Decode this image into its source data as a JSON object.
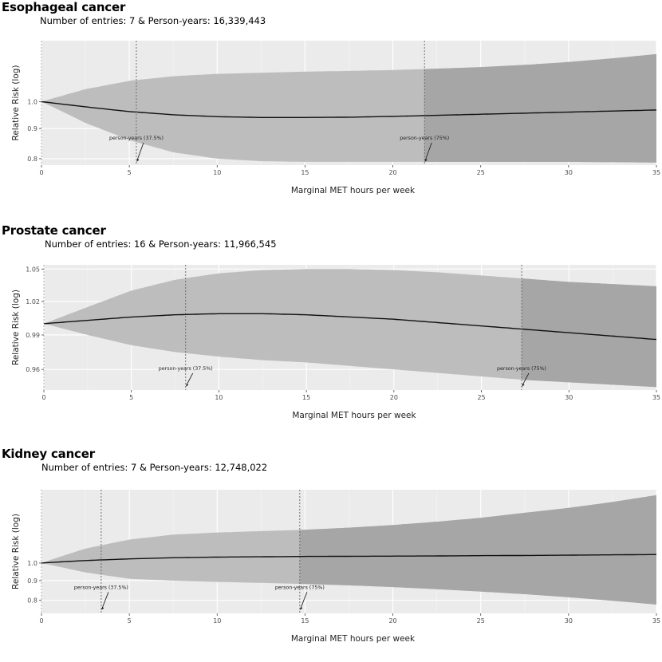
{
  "chart_data": [
    {
      "type": "line",
      "title": "Esophageal cancer",
      "subtitle": "Number of entries: 7 & Person-years: 16,339,443",
      "xlabel": "Marginal MET hours per week",
      "ylabel": "Relative Risk (log)",
      "scale_y": "log",
      "xlim": [
        0,
        35
      ],
      "ylim": [
        0.78,
        1.27
      ],
      "x_ticks": [
        0,
        5,
        10,
        15,
        20,
        25,
        30,
        35
      ],
      "y_ticks": [
        0.8,
        0.9,
        1.0
      ],
      "y_tick_labels": [
        "0.8",
        "0.9",
        "1.0"
      ],
      "grid": true,
      "series": [
        {
          "x": [
            0,
            2.5,
            5,
            7.5,
            10,
            12.5,
            15,
            17.5,
            20,
            22.5,
            25,
            27.5,
            30,
            32.5,
            35
          ],
          "y": [
            1.0,
            0.98,
            0.962,
            0.95,
            0.943,
            0.94,
            0.94,
            0.941,
            0.944,
            0.948,
            0.952,
            0.956,
            0.96,
            0.964,
            0.968
          ],
          "lower": [
            1.0,
            0.92,
            0.86,
            0.82,
            0.8,
            0.792,
            0.79,
            0.79,
            0.79,
            0.79,
            0.79,
            0.79,
            0.79,
            0.789,
            0.788
          ],
          "upper": [
            1.0,
            1.05,
            1.085,
            1.105,
            1.115,
            1.12,
            1.125,
            1.128,
            1.132,
            1.138,
            1.145,
            1.155,
            1.168,
            1.185,
            1.205
          ]
        }
      ],
      "shaded_from_x": 21.8,
      "vlines": [
        {
          "x": 5.4,
          "label": "person-years (37.5%)",
          "label_y": 0.862
        },
        {
          "x": 21.8,
          "label": "person-years (75%)",
          "label_y": 0.862
        }
      ]
    },
    {
      "type": "line",
      "title": "Prostate cancer",
      "subtitle": "Number of entries: 16 & Person-years: 11,966,545",
      "xlabel": "Marginal MET hours per week",
      "ylabel": "Relative Risk (log)",
      "scale_y": "log",
      "xlim": [
        0,
        35
      ],
      "ylim": [
        0.9425,
        1.054
      ],
      "x_ticks": [
        0,
        5,
        10,
        15,
        20,
        25,
        30,
        35
      ],
      "y_ticks": [
        0.96,
        0.99,
        1.02,
        1.05
      ],
      "y_tick_labels": [
        "0.96",
        "0.99",
        "1.02",
        "1.05"
      ],
      "grid": true,
      "series": [
        {
          "x": [
            0,
            2.5,
            5,
            7.5,
            10,
            12.5,
            15,
            17.5,
            20,
            22.5,
            25,
            27.5,
            30,
            32.5,
            35
          ],
          "y": [
            1.0,
            1.003,
            1.006,
            1.008,
            1.009,
            1.009,
            1.008,
            1.006,
            1.004,
            1.001,
            0.998,
            0.995,
            0.992,
            0.989,
            0.986
          ],
          "lower": [
            1.0,
            0.99,
            0.981,
            0.975,
            0.971,
            0.968,
            0.966,
            0.963,
            0.96,
            0.957,
            0.954,
            0.951,
            0.949,
            0.947,
            0.945
          ],
          "upper": [
            1.0,
            1.015,
            1.03,
            1.04,
            1.046,
            1.049,
            1.05,
            1.05,
            1.049,
            1.047,
            1.044,
            1.041,
            1.038,
            1.036,
            1.034
          ]
        }
      ],
      "shaded_from_x": 27.3,
      "vlines": [
        {
          "x": 8.1,
          "label": "person-years (37.5%)",
          "label_y": 0.9595
        },
        {
          "x": 27.3,
          "label": "person-years (75%)",
          "label_y": 0.9595
        }
      ]
    },
    {
      "type": "line",
      "title": "Kidney cancer",
      "subtitle": "Number of entries: 7 & Person-years: 12,748,022",
      "xlabel": "Marginal MET hours per week",
      "ylabel": "Relative Risk (log)",
      "scale_y": "log",
      "xlim": [
        0,
        35
      ],
      "ylim": [
        0.74,
        1.55
      ],
      "x_ticks": [
        0,
        5,
        10,
        15,
        20,
        25,
        30,
        35
      ],
      "y_ticks": [
        0.8,
        0.9,
        1.0
      ],
      "y_tick_labels": [
        "0.8",
        "0.9",
        "1.0"
      ],
      "grid": true,
      "series": [
        {
          "x": [
            0,
            2.5,
            5,
            7.5,
            10,
            12.5,
            15,
            17.5,
            20,
            22.5,
            25,
            27.5,
            30,
            32.5,
            35
          ],
          "y": [
            1.0,
            1.015,
            1.025,
            1.032,
            1.036,
            1.038,
            1.04,
            1.041,
            1.042,
            1.043,
            1.045,
            1.046,
            1.048,
            1.05,
            1.052
          ],
          "lower": [
            1.0,
            0.945,
            0.91,
            0.9,
            0.893,
            0.888,
            0.882,
            0.875,
            0.866,
            0.855,
            0.843,
            0.83,
            0.815,
            0.798,
            0.78
          ],
          "upper": [
            1.0,
            1.09,
            1.15,
            1.185,
            1.2,
            1.21,
            1.22,
            1.235,
            1.255,
            1.28,
            1.31,
            1.35,
            1.39,
            1.44,
            1.5
          ]
        }
      ],
      "shaded_from_x": 14.7,
      "vlines": [
        {
          "x": 3.4,
          "label": "person-years (37.5%)",
          "label_y": 0.856
        },
        {
          "x": 14.7,
          "label": "person-years (75%)",
          "label_y": 0.856
        }
      ]
    }
  ]
}
